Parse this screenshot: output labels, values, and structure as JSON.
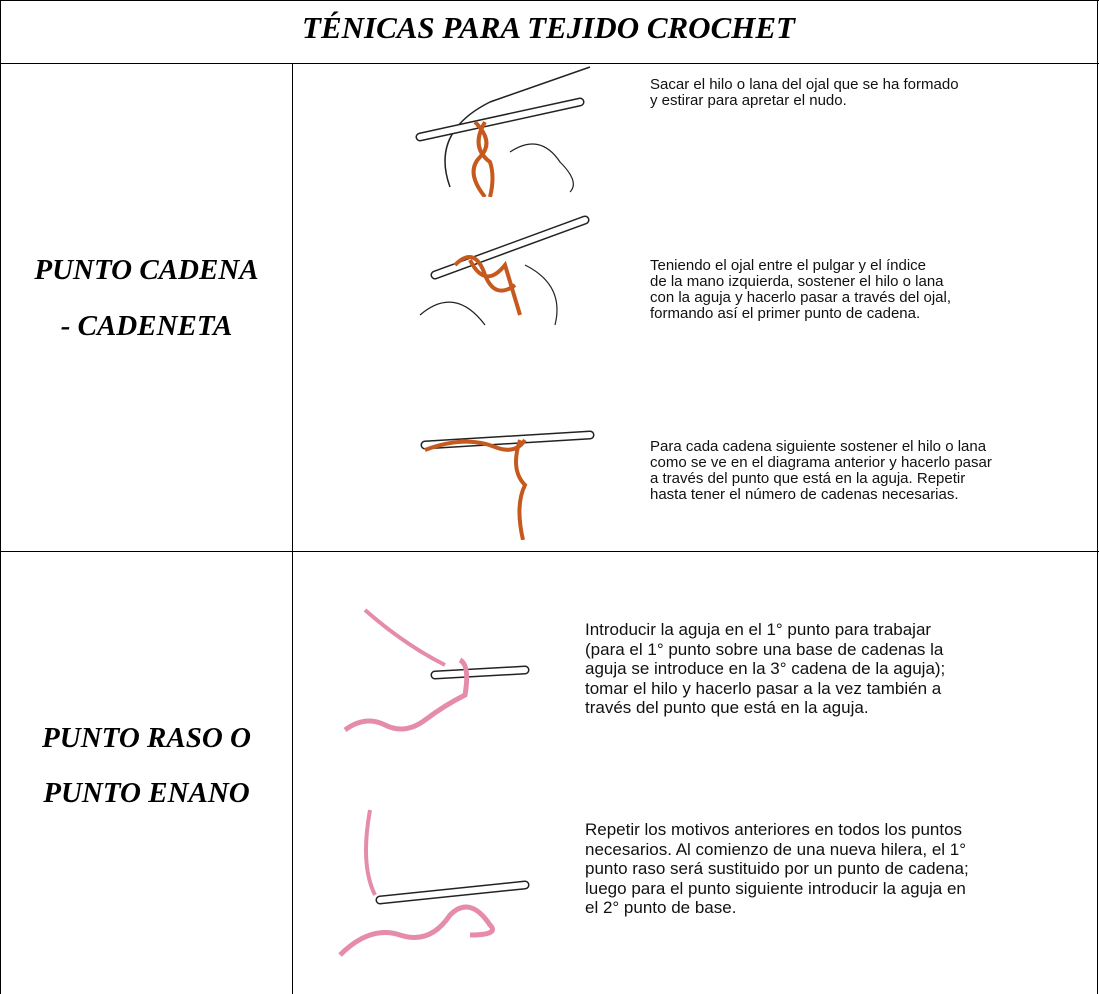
{
  "title": "TÉNICAS PARA TEJIDO CROCHET",
  "rows": [
    {
      "name": [
        "PUNTO CADENA",
        "- CADENETA"
      ],
      "steps": [
        {
          "lines": [
            "Sacar el hilo o lana del ojal que se ha formado",
            "y estirar para apretar el nudo."
          ]
        },
        {
          "lines": [
            "Teniendo el ojal entre el pulgar y el índice",
            "de la mano izquierda, sostener el hilo o lana",
            "con la aguja y hacerlo pasar a través del ojal,",
            "formando así el primer punto de cadena."
          ]
        },
        {
          "lines": [
            "Para cada cadena siguiente sostener el hilo o lana",
            "como se ve en el diagrama anterior y hacerlo pasar",
            "a través del punto que está en la aguja. Repetir",
            "hasta tener el número de cadenas necesarias."
          ]
        }
      ]
    },
    {
      "name": [
        "PUNTO RASO O",
        "PUNTO ENANO"
      ],
      "steps": [
        {
          "lines": [
            "Introducir la aguja en el 1° punto para trabajar",
            "(para el 1° punto sobre una base de cadenas la",
            "aguja se introduce en la 3° cadena de la aguja);",
            "tomar el hilo y hacerlo pasar a la vez también a",
            "través del punto que está en la aguja."
          ]
        },
        {
          "lines": [
            "Repetir los motivos anteriores en todos los puntos",
            "necesarios. Al comienzo de una nueva hilera, el 1°",
            "punto raso será sustituido por un punto de cadena;",
            "luego para el punto siguiente introducir la aguja en",
            "el 2° punto de base."
          ]
        }
      ]
    }
  ]
}
